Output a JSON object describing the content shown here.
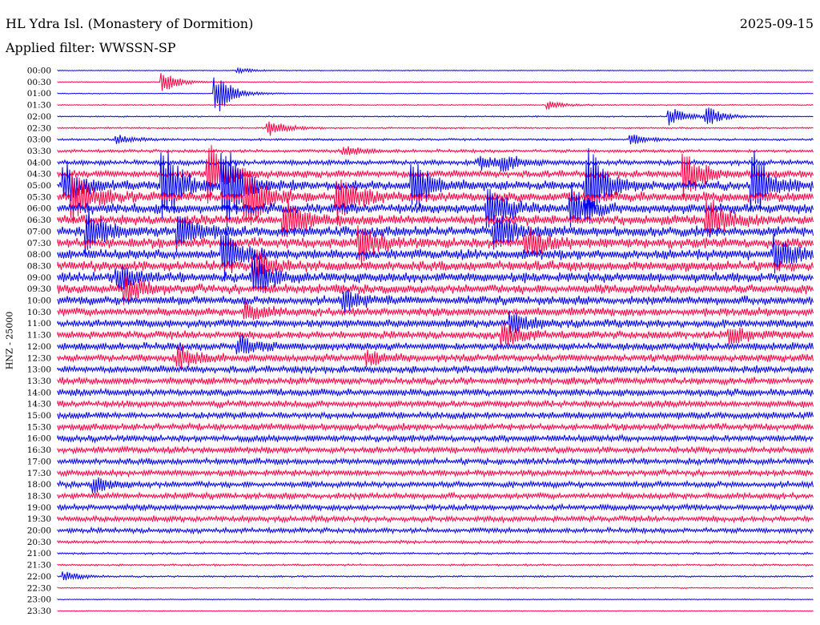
{
  "header": {
    "station": "HL Ydra Isl. (Monastery of Dormition)",
    "date": "2025-09-15",
    "filter": "Applied filter: WWSSN-SP"
  },
  "chart_data": {
    "type": "line",
    "title": "HL Ydra Isl. (Monastery of Dormition)",
    "ylabel": "HNZ - 25000",
    "trace_colors": [
      "#0000ee",
      "#ff0044"
    ],
    "rows": [
      "00:00",
      "00:30",
      "01:00",
      "01:30",
      "02:00",
      "02:30",
      "03:00",
      "03:30",
      "04:00",
      "04:30",
      "05:00",
      "05:30",
      "06:00",
      "06:30",
      "07:00",
      "07:30",
      "08:00",
      "08:30",
      "09:00",
      "09:30",
      "10:00",
      "10:30",
      "11:00",
      "11:30",
      "12:00",
      "12:30",
      "13:00",
      "13:30",
      "14:00",
      "14:30",
      "15:00",
      "15:30",
      "16:00",
      "16:30",
      "17:00",
      "17:30",
      "18:00",
      "18:30",
      "19:00",
      "19:30",
      "20:00",
      "20:30",
      "21:00",
      "21:30",
      "22:00",
      "22:30",
      "23:00",
      "23:30"
    ],
    "noise_level": [
      0.4,
      0.4,
      0.4,
      0.5,
      0.6,
      0.8,
      1.0,
      1.5,
      2.5,
      3.5,
      4.5,
      5.0,
      5.0,
      5.0,
      5.0,
      5.0,
      5.0,
      5.0,
      4.8,
      4.5,
      4.3,
      4.2,
      4.0,
      3.8,
      3.8,
      3.8,
      3.6,
      3.5,
      3.5,
      3.4,
      3.4,
      3.3,
      3.3,
      3.2,
      3.1,
      3.0,
      3.0,
      3.0,
      3.0,
      2.8,
      2.5,
      1.5,
      1.0,
      0.9,
      0.8,
      0.6,
      0.5,
      0.4
    ],
    "events": [
      {
        "row": 0,
        "x": 0.24,
        "amp": 3
      },
      {
        "row": 1,
        "x": 0.14,
        "amp": 12
      },
      {
        "row": 2,
        "x": 0.21,
        "amp": 25
      },
      {
        "row": 3,
        "x": 0.65,
        "amp": 5
      },
      {
        "row": 4,
        "x": 0.86,
        "amp": 10
      },
      {
        "row": 4,
        "x": 0.81,
        "amp": 12
      },
      {
        "row": 5,
        "x": 0.28,
        "amp": 10
      },
      {
        "row": 6,
        "x": 0.08,
        "amp": 5
      },
      {
        "row": 6,
        "x": 0.76,
        "amp": 6
      },
      {
        "row": 7,
        "x": 0.38,
        "amp": 6
      },
      {
        "row": 8,
        "x": 0.56,
        "amp": 8
      },
      {
        "row": 8,
        "x": 0.59,
        "amp": 8
      },
      {
        "row": 9,
        "x": 0.2,
        "amp": 35
      },
      {
        "row": 9,
        "x": 0.83,
        "amp": 30
      },
      {
        "row": 10,
        "x": 0.01,
        "amp": 25
      },
      {
        "row": 10,
        "x": 0.14,
        "amp": 50
      },
      {
        "row": 10,
        "x": 0.22,
        "amp": 55
      },
      {
        "row": 10,
        "x": 0.47,
        "amp": 35
      },
      {
        "row": 10,
        "x": 0.7,
        "amp": 50
      },
      {
        "row": 10,
        "x": 0.92,
        "amp": 40
      },
      {
        "row": 11,
        "x": 0.02,
        "amp": 30
      },
      {
        "row": 11,
        "x": 0.25,
        "amp": 40
      },
      {
        "row": 11,
        "x": 0.37,
        "amp": 30
      },
      {
        "row": 12,
        "x": 0.57,
        "amp": 28
      },
      {
        "row": 12,
        "x": 0.68,
        "amp": 25
      },
      {
        "row": 13,
        "x": 0.3,
        "amp": 28
      },
      {
        "row": 13,
        "x": 0.86,
        "amp": 25
      },
      {
        "row": 14,
        "x": 0.04,
        "amp": 25
      },
      {
        "row": 14,
        "x": 0.16,
        "amp": 22
      },
      {
        "row": 14,
        "x": 0.58,
        "amp": 22
      },
      {
        "row": 15,
        "x": 0.4,
        "amp": 22
      },
      {
        "row": 15,
        "x": 0.62,
        "amp": 18
      },
      {
        "row": 16,
        "x": 0.22,
        "amp": 30
      },
      {
        "row": 16,
        "x": 0.95,
        "amp": 22
      },
      {
        "row": 17,
        "x": 0.26,
        "amp": 20
      },
      {
        "row": 18,
        "x": 0.26,
        "amp": 24
      },
      {
        "row": 18,
        "x": 0.08,
        "amp": 15
      },
      {
        "row": 19,
        "x": 0.09,
        "amp": 18
      },
      {
        "row": 20,
        "x": 0.38,
        "amp": 12
      },
      {
        "row": 21,
        "x": 0.25,
        "amp": 10
      },
      {
        "row": 22,
        "x": 0.6,
        "amp": 12
      },
      {
        "row": 23,
        "x": 0.59,
        "amp": 14
      },
      {
        "row": 23,
        "x": 0.89,
        "amp": 12
      },
      {
        "row": 24,
        "x": 0.24,
        "amp": 12
      },
      {
        "row": 25,
        "x": 0.16,
        "amp": 14
      },
      {
        "row": 25,
        "x": 0.41,
        "amp": 8
      },
      {
        "row": 36,
        "x": 0.05,
        "amp": 8
      },
      {
        "row": 44,
        "x": 0.01,
        "amp": 6
      }
    ]
  }
}
